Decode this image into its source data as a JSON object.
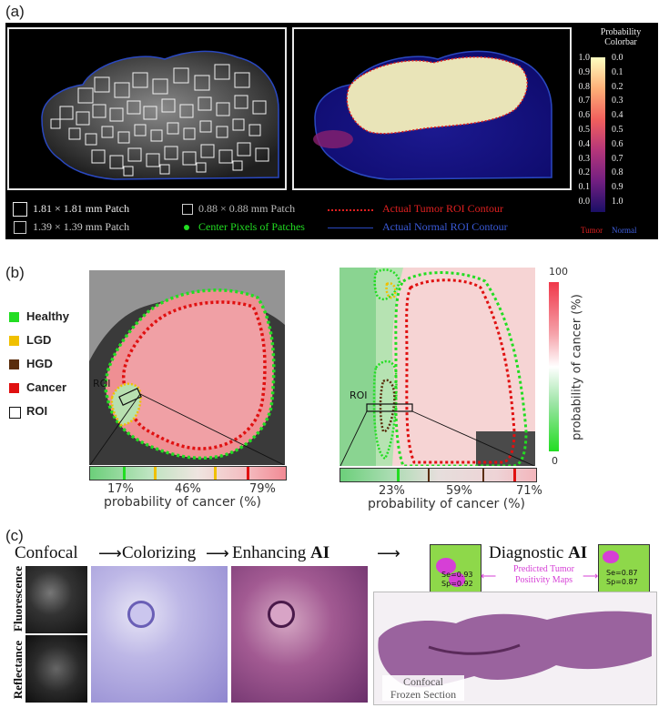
{
  "panel_a": {
    "label": "(a)",
    "colorbar_title_1": "Probability",
    "colorbar_title_2": "Colorbar",
    "colorbar_left_ticks": [
      "1.0",
      "0.9",
      "0.8",
      "0.7",
      "0.6",
      "0.5",
      "0.4",
      "0.3",
      "0.2",
      "0.1",
      "0.0"
    ],
    "colorbar_right_ticks": [
      "0.0",
      "0.1",
      "0.2",
      "0.3",
      "0.4",
      "0.5",
      "0.6",
      "0.7",
      "0.8",
      "0.9",
      "1.0"
    ],
    "colorbar_tumor": "Tumor",
    "colorbar_normal": "Normal",
    "legend": {
      "patch_181": "1.81 × 1.81 mm Patch",
      "patch_088": "0.88 × 0.88 mm Patch",
      "patch_139": "1.39 × 1.39 mm Patch",
      "center_pixels": "Center Pixels of Patches",
      "tumor_contour": "Actual Tumor ROI Contour",
      "normal_contour": "Actual Normal ROI Contour"
    },
    "colors": {
      "tumor": "#e02020",
      "normal": "#2040c0",
      "center": "#22dd22"
    }
  },
  "panel_b": {
    "label": "(b)",
    "legend": [
      {
        "label": "Healthy",
        "color": "#22dd22"
      },
      {
        "label": "LGD",
        "color": "#f0c000"
      },
      {
        "label": "HGD",
        "color": "#5a2d0c"
      },
      {
        "label": "Cancer",
        "color": "#e01010"
      },
      {
        "label": "ROI",
        "color": "#ffffff"
      }
    ],
    "roi_label": "ROI",
    "left_ticks": [
      "17%",
      "46%",
      "79%"
    ],
    "right_ticks": [
      "23%",
      "59%",
      "71%"
    ],
    "axis_label": "probability of cancer (%)",
    "colorbar_top": "100",
    "colorbar_bottom": "0",
    "colorbar_label": "probability of cancer (%)"
  },
  "panel_c": {
    "label": "(c)",
    "confocal": "Confocal",
    "colorizing": "Colorizing",
    "enhancing": "Enhancing ",
    "ai": "AI",
    "diagnostic": "Diagnostic ",
    "fluorescence": "Fluorescence",
    "reflectance": "Reflectance",
    "predicted": "Predicted Tumor",
    "positivity": "Positivity Maps",
    "se_left": "Se=0.93",
    "sp_left": "Sp=0.92",
    "se_right": "Se=0.87",
    "sp_right": "Sp=0.87",
    "frozen_1": "Confocal",
    "frozen_2": "Frozen Section"
  }
}
